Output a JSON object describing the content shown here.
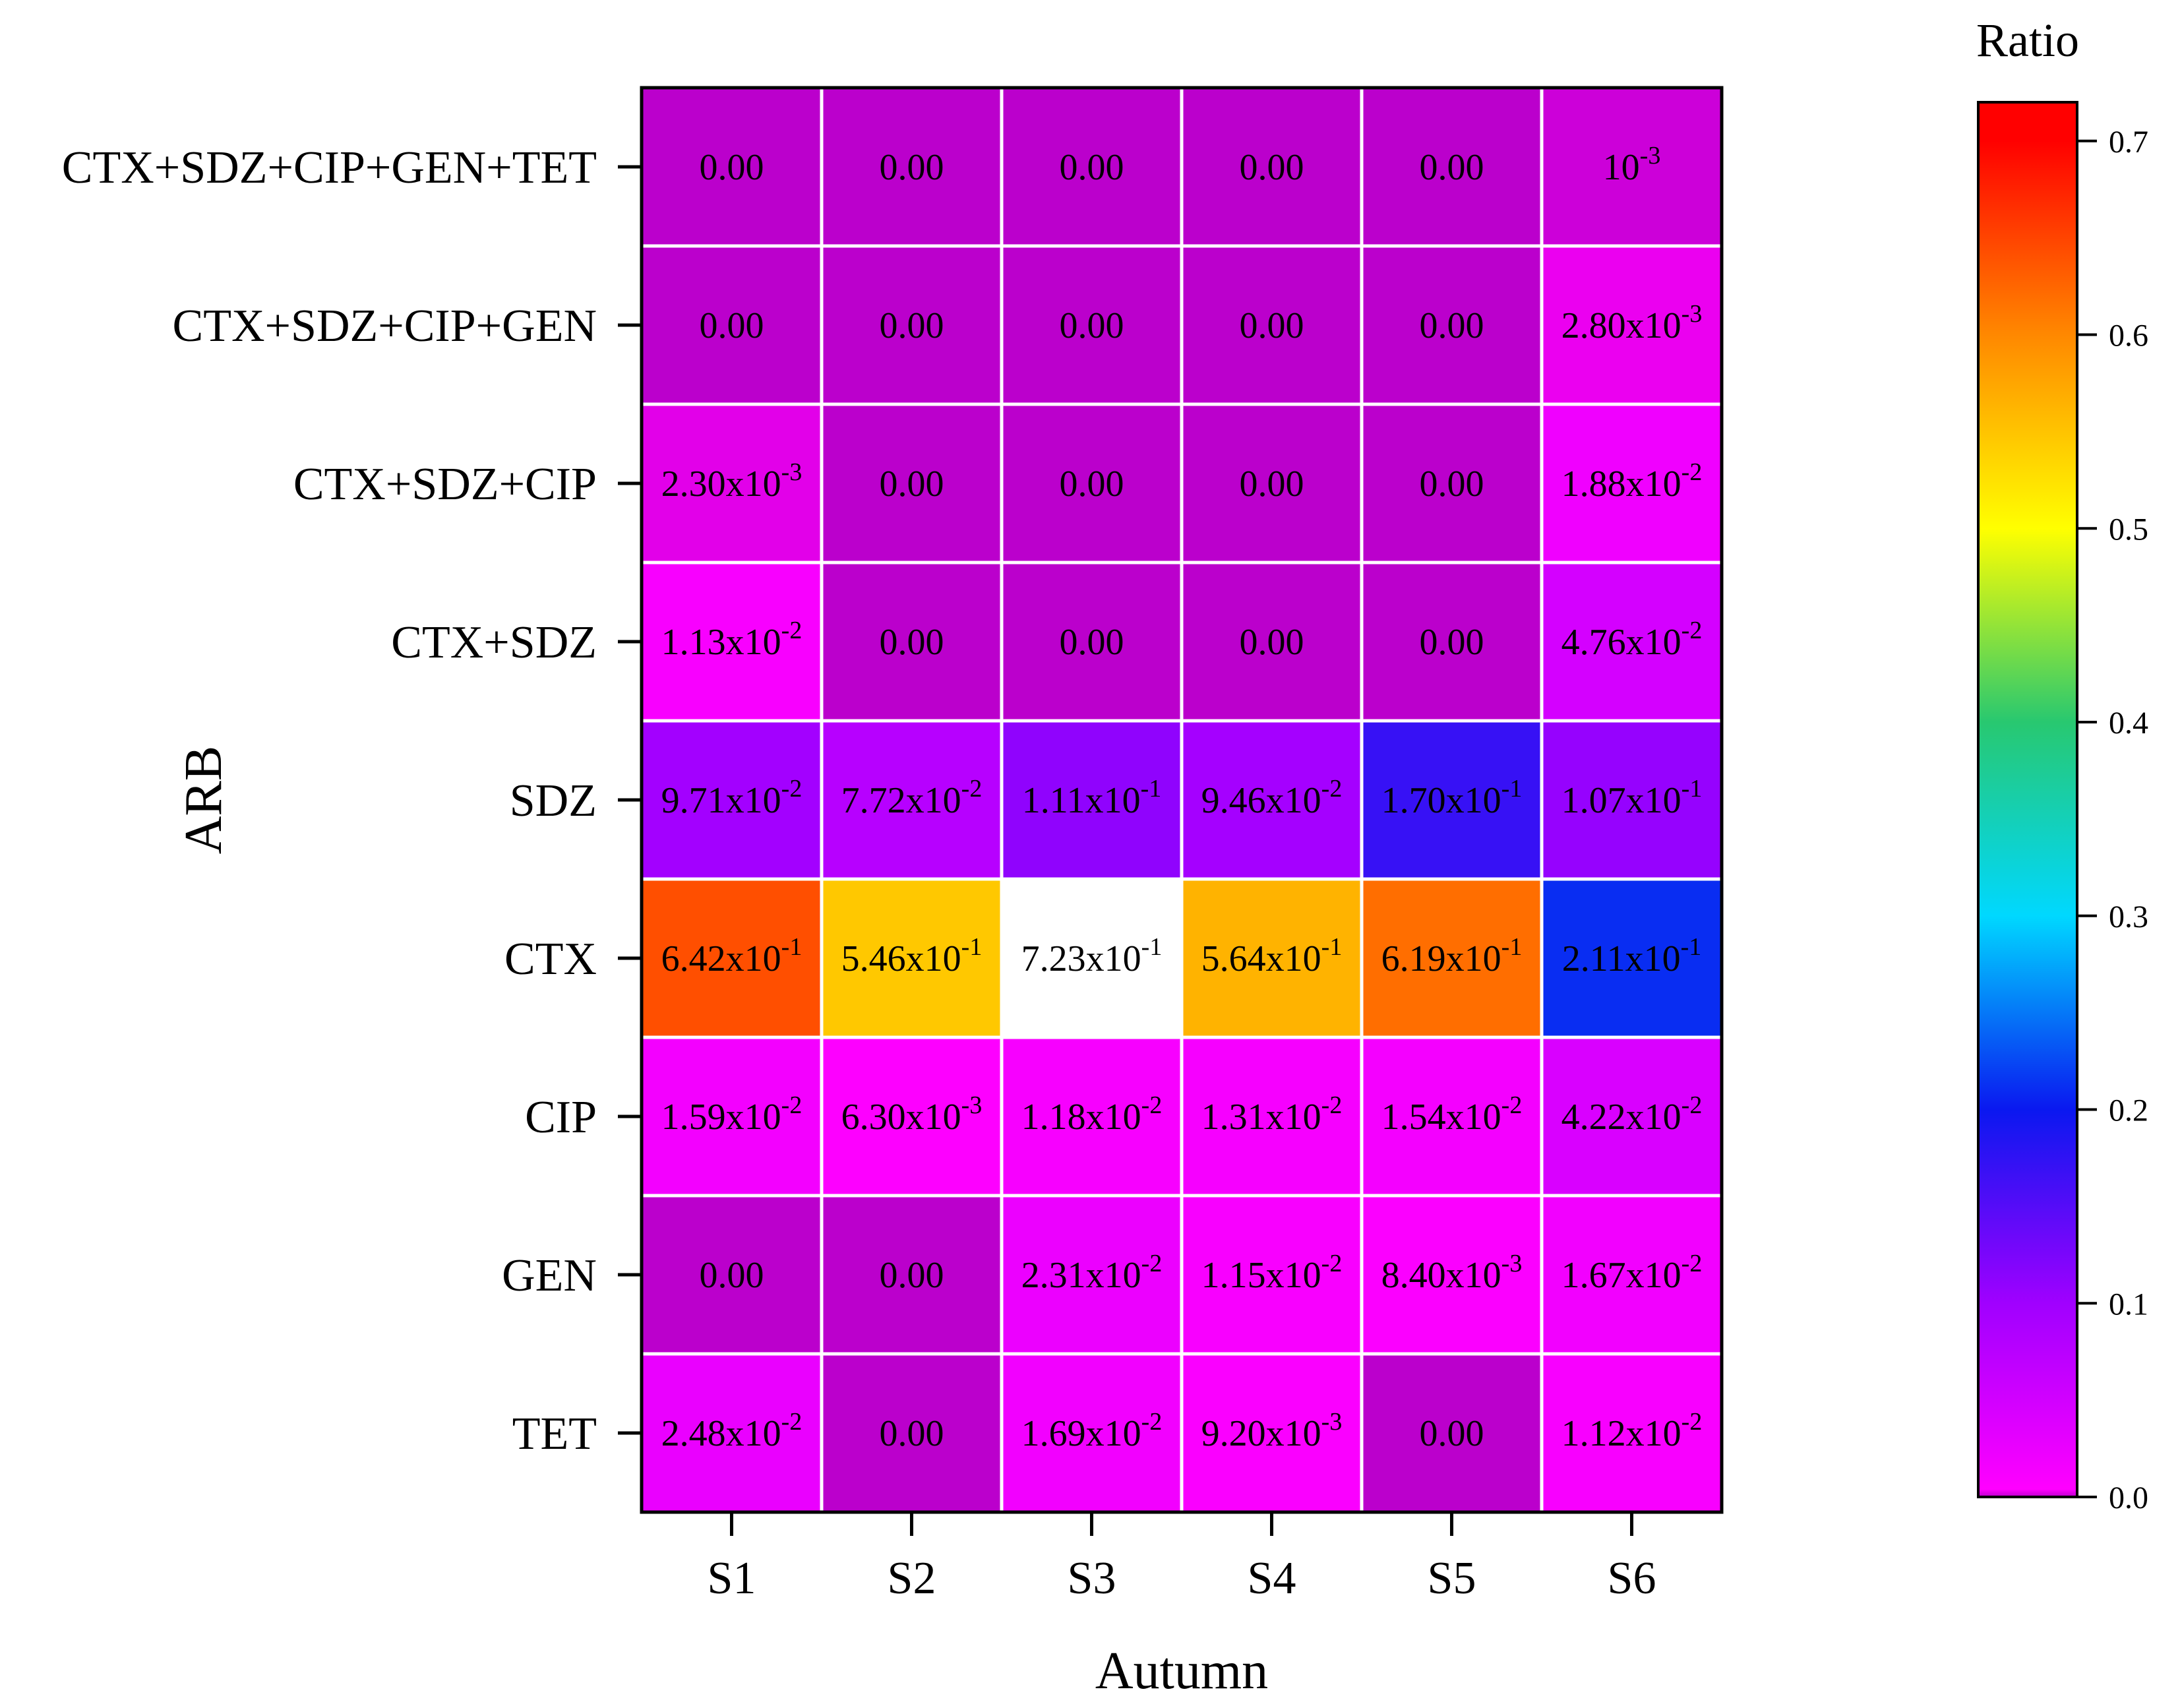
{
  "chart_data": {
    "type": "heatmap",
    "xlabel": "Autumn",
    "ylabel": "ARB",
    "x_categories": [
      "S1",
      "S2",
      "S3",
      "S4",
      "S5",
      "S6"
    ],
    "y_categories": [
      "CTX+SDZ+CIP+GEN+TET",
      "CTX+SDZ+CIP+GEN",
      "CTX+SDZ+CIP",
      "CTX+SDZ",
      "SDZ",
      "CTX",
      "CIP",
      "GEN",
      "TET"
    ],
    "values": [
      [
        0,
        0,
        0,
        0,
        0,
        0.001
      ],
      [
        0,
        0,
        0,
        0,
        0,
        0.0028
      ],
      [
        0.0023,
        0,
        0,
        0,
        0,
        0.0188
      ],
      [
        0.0113,
        0,
        0,
        0,
        0,
        0.0476
      ],
      [
        0.0971,
        0.0772,
        0.111,
        0.0946,
        0.17,
        0.107
      ],
      [
        0.642,
        0.546,
        0.723,
        0.564,
        0.619,
        0.211
      ],
      [
        0.0159,
        0.0063,
        0.0118,
        0.0131,
        0.0154,
        0.0422
      ],
      [
        0,
        0,
        0.0231,
        0.0115,
        0.0084,
        0.0167
      ],
      [
        0.0248,
        0,
        0.0169,
        0.0092,
        0,
        0.0112
      ]
    ],
    "cell_labels": [
      [
        [
          "0.00",
          ""
        ],
        [
          "0.00",
          ""
        ],
        [
          "0.00",
          ""
        ],
        [
          "0.00",
          ""
        ],
        [
          "0.00",
          ""
        ],
        [
          "10",
          "-3"
        ]
      ],
      [
        [
          "0.00",
          ""
        ],
        [
          "0.00",
          ""
        ],
        [
          "0.00",
          ""
        ],
        [
          "0.00",
          ""
        ],
        [
          "0.00",
          ""
        ],
        [
          "2.80x10",
          "-3"
        ]
      ],
      [
        [
          "2.30x10",
          "-3"
        ],
        [
          "0.00",
          ""
        ],
        [
          "0.00",
          ""
        ],
        [
          "0.00",
          ""
        ],
        [
          "0.00",
          ""
        ],
        [
          "1.88x10",
          "-2"
        ]
      ],
      [
        [
          "1.13x10",
          "-2"
        ],
        [
          "0.00",
          ""
        ],
        [
          "0.00",
          ""
        ],
        [
          "0.00",
          ""
        ],
        [
          "0.00",
          ""
        ],
        [
          "4.76x10",
          "-2"
        ]
      ],
      [
        [
          "9.71x10",
          "-2"
        ],
        [
          "7.72x10",
          "-2"
        ],
        [
          "1.11x10",
          "-1"
        ],
        [
          "9.46x10",
          "-2"
        ],
        [
          "1.70x10",
          "-1"
        ],
        [
          "1.07x10",
          "-1"
        ]
      ],
      [
        [
          "6.42x10",
          "-1"
        ],
        [
          "5.46x10",
          "-1"
        ],
        [
          "7.23x10",
          "-1"
        ],
        [
          "5.64x10",
          "-1"
        ],
        [
          "6.19x10",
          "-1"
        ],
        [
          "2.11x10",
          "-1"
        ]
      ],
      [
        [
          "1.59x10",
          "-2"
        ],
        [
          "6.30x10",
          "-3"
        ],
        [
          "1.18x10",
          "-2"
        ],
        [
          "1.31x10",
          "-2"
        ],
        [
          "1.54x10",
          "-2"
        ],
        [
          "4.22x10",
          "-2"
        ]
      ],
      [
        [
          "0.00",
          ""
        ],
        [
          "0.00",
          ""
        ],
        [
          "2.31x10",
          "-2"
        ],
        [
          "1.15x10",
          "-2"
        ],
        [
          "8.40x10",
          "-3"
        ],
        [
          "1.67x10",
          "-2"
        ]
      ],
      [
        [
          "2.48x10",
          "-2"
        ],
        [
          "0.00",
          ""
        ],
        [
          "1.69x10",
          "-2"
        ],
        [
          "9.20x10",
          "-3"
        ],
        [
          "0.00",
          ""
        ],
        [
          "1.12x10",
          "-2"
        ]
      ]
    ],
    "colorbar": {
      "title": "Ratio",
      "range": [
        0,
        0.72
      ],
      "ticks": [
        0.0,
        0.1,
        0.2,
        0.3,
        0.4,
        0.5,
        0.6,
        0.7
      ],
      "tick_labels": [
        "0.0",
        "0.1",
        "0.2",
        "0.3",
        "0.4",
        "0.5",
        "0.6",
        "0.7"
      ],
      "color_stops": [
        {
          "value": 0.0,
          "color": "#bb00cc"
        },
        {
          "value": 0.004,
          "color": "#ff00ff"
        },
        {
          "value": 0.1,
          "color": "#a000ff"
        },
        {
          "value": 0.2,
          "color": "#0a18f0"
        },
        {
          "value": 0.3,
          "color": "#00d8ff"
        },
        {
          "value": 0.4,
          "color": "#28c870"
        },
        {
          "value": 0.5,
          "color": "#ffff00"
        },
        {
          "value": 0.6,
          "color": "#ff8800"
        },
        {
          "value": 0.7,
          "color": "#ff0000"
        },
        {
          "value": 0.72,
          "color": "#ff0000"
        }
      ],
      "above_range_color": "#ffffff"
    },
    "grid_color": "#ffffff",
    "frame_color": "#000000"
  }
}
